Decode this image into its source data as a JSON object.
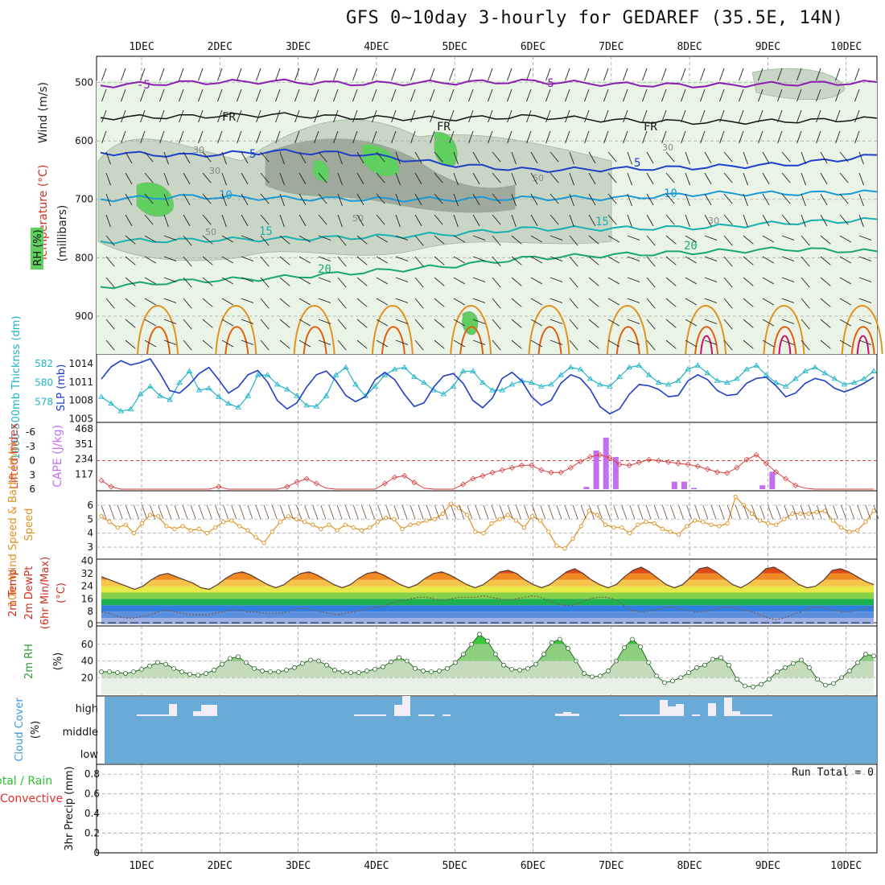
{
  "title": "GFS 0~10day 3-hourly for GEDAREF (35.5E, 14N)",
  "colors": {
    "rh_fill": "#5fcf5f",
    "wind_label": "#222222",
    "temp_label": "#d03020",
    "rh_label": "#30a030",
    "thickness": "#20b4c8",
    "slp": "#1f3fc8",
    "lifted": "#d84040",
    "cape": "#c070f0",
    "wind10": "#e09020",
    "cloud": "#6aaad6",
    "precip_total": "#30c030",
    "precip_conv": "#e03030"
  },
  "chart_data": [
    {
      "panel": "upper-air",
      "type": "area",
      "x_ticks": [
        "1DEC",
        "2DEC",
        "3DEC",
        "4DEC",
        "5DEC",
        "6DEC",
        "7DEC",
        "8DEC",
        "9DEC",
        "10DEC"
      ],
      "ylabel": "(millibars)",
      "y_ticks": [
        500,
        600,
        700,
        800,
        900
      ],
      "side_labels": [
        "Wind (m/s)",
        "Temperature (°C)",
        "RH (%)"
      ],
      "isotherm_labels": [
        "-5",
        "-5",
        "FR",
        "FR",
        "FR",
        "5",
        "5",
        "10",
        "10",
        "15",
        "15",
        "20",
        "20"
      ],
      "rh_labels": [
        "30",
        "30",
        "50",
        "50",
        "30",
        "30",
        "50"
      ],
      "series": [
        {
          "name": "-5",
          "values": [
            505,
            500,
            498,
            502,
            500,
            498,
            503,
            505,
            502,
            500
          ]
        },
        {
          "name": "FR",
          "values": [
            560,
            558,
            555,
            560,
            562,
            558,
            565,
            568,
            566,
            562
          ]
        },
        {
          "name": "5",
          "values": [
            620,
            625,
            618,
            622,
            640,
            650,
            648,
            645,
            640,
            625
          ]
        },
        {
          "name": "10",
          "values": [
            700,
            695,
            698,
            700,
            700,
            698,
            698,
            690,
            690,
            688
          ]
        },
        {
          "name": "15",
          "values": [
            772,
            770,
            768,
            765,
            760,
            750,
            750,
            748,
            740,
            735
          ]
        },
        {
          "name": "20",
          "values": [
            850,
            840,
            835,
            825,
            815,
            800,
            795,
            790,
            785,
            790
          ]
        }
      ]
    },
    {
      "panel": "thickness-slp",
      "type": "line",
      "ylabel_left": "1000-500mb Thicknss (dm)",
      "ylabel_right": "SLP (mb)",
      "y_ticks_left": [
        "582",
        "580",
        "578"
      ],
      "y_ticks_right": [
        "1014",
        "1011",
        "1008",
        "1005"
      ],
      "series": [
        {
          "name": "1000-500mb Thicknss (dm)",
          "values": [
            578.5,
            577.8,
            577.0,
            577.2,
            578.8,
            579.6,
            578.6,
            578.2,
            580.0,
            581.2,
            579.2,
            579.4,
            578.5,
            577.8,
            577.4,
            578.6,
            580.8,
            580.8,
            579.8,
            579.3,
            578.6,
            577.6,
            577.5,
            578.6,
            580.8,
            581.6,
            579.8,
            578.6,
            579.6,
            580.8,
            581.4,
            581.6,
            580.6,
            580.0,
            579.2,
            578.8,
            579.6,
            581.2,
            581.2,
            580.0,
            579.2,
            579.2,
            579.8,
            580.2,
            580.0,
            579.6,
            579.8,
            580.8,
            581.6,
            581.4,
            580.4,
            579.8,
            579.6,
            580.6,
            581.6,
            581.8,
            580.8,
            580.0,
            579.8,
            580.2,
            581.4,
            581.8,
            581.0,
            580.2,
            580.0,
            580.4,
            581.4,
            581.8,
            580.8,
            580.0,
            579.6,
            580.4,
            581.2,
            581.6,
            581.0,
            580.4,
            579.8,
            580.0,
            580.4,
            581.2
          ]
        },
        {
          "name": "SLP (mb)",
          "values": [
            1011.5,
            1013.5,
            1014.5,
            1013.8,
            1014.2,
            1014.8,
            1012.4,
            1009.6,
            1009.2,
            1010.6,
            1012.4,
            1013.4,
            1011.4,
            1009.2,
            1010.2,
            1012.2,
            1012.9,
            1011.0,
            1008.0,
            1006.6,
            1007.6,
            1010.2,
            1012.2,
            1012.8,
            1011.2,
            1008.8,
            1007.8,
            1008.6,
            1011.4,
            1012.6,
            1011.4,
            1009.0,
            1007.0,
            1007.6,
            1010.2,
            1012.0,
            1012.4,
            1010.8,
            1008.0,
            1006.8,
            1008.4,
            1011.6,
            1012.6,
            1011.2,
            1008.6,
            1007.2,
            1008.0,
            1010.8,
            1012.2,
            1011.6,
            1009.8,
            1007.0,
            1005.8,
            1006.6,
            1009.0,
            1010.6,
            1010.4,
            1009.8,
            1008.6,
            1008.8,
            1011.2,
            1012.2,
            1011.4,
            1009.6,
            1008.8,
            1009.0,
            1010.8,
            1011.6,
            1011.8,
            1010.4,
            1008.6,
            1009.2,
            1010.8,
            1011.6,
            1011.2,
            1010.0,
            1009.4,
            1010.0,
            1010.8,
            1011.8
          ]
        }
      ]
    },
    {
      "panel": "cape-lifted",
      "type": "bar",
      "ylabel_left": "Lifted Index",
      "ylabel_right": "CAPE (J/kg)",
      "y_ticks_left": [
        "-6",
        "-3",
        "0",
        "3",
        "6"
      ],
      "y_ticks_right": [
        "468",
        "351",
        "234",
        "117"
      ],
      "cape_values": [
        0,
        0,
        0,
        0,
        0,
        0,
        0,
        0,
        0,
        0,
        0,
        0,
        0,
        0,
        0,
        0,
        0,
        0,
        0,
        0,
        0,
        0,
        0,
        0,
        0,
        0,
        0,
        0,
        0,
        0,
        0,
        0,
        0,
        0,
        0,
        0,
        0,
        0,
        0,
        0,
        0,
        0,
        0,
        0,
        0,
        0,
        0,
        0,
        0,
        18,
        300,
        400,
        250,
        0,
        0,
        0,
        0,
        0,
        0,
        0,
        0,
        0,
        0,
        0,
        0,
        0,
        0,
        0,
        0,
        0,
        0,
        0,
        0,
        0,
        0,
        0,
        0,
        0,
        0,
        0
      ],
      "cape_extra": [
        {
          "index": 58,
          "value": 58
        },
        {
          "index": 59,
          "value": 58
        },
        {
          "index": 60,
          "value": 10
        },
        {
          "index": 67,
          "value": 30
        },
        {
          "index": 68,
          "value": 135
        }
      ],
      "lifted_values": [
        4.2,
        5.5,
        6,
        6,
        6,
        6,
        6,
        6,
        6,
        6,
        6,
        6,
        5.5,
        6,
        6,
        6,
        6,
        6,
        6,
        5.5,
        4.5,
        3.8,
        4.8,
        5.8,
        6,
        6,
        6,
        6,
        6,
        4.8,
        3.5,
        3.2,
        4.6,
        5.8,
        6,
        6,
        6,
        5,
        3.8,
        3.2,
        2.5,
        2.0,
        1.5,
        1.0,
        1.0,
        2.0,
        2.5,
        2.5,
        1.5,
        0.2,
        -0.8,
        -1.2,
        -0.6,
        0.8,
        1.0,
        0.4,
        -0.2,
        0.0,
        0.3,
        0.6,
        0.8,
        1.2,
        1.8,
        2.4,
        2.6,
        1.5,
        -0.2,
        -1.2,
        0.6,
        2.4,
        3.8,
        5.2,
        5.8,
        6,
        6,
        6,
        6,
        6,
        6,
        6
      ]
    },
    {
      "panel": "wind-10m",
      "type": "line",
      "ylabel": "10m Wind Speed & Barbs (m/s)",
      "y_ticks": [
        "6",
        "5",
        "4",
        "3"
      ],
      "values": [
        5.2,
        4.8,
        4.4,
        4.6,
        4.0,
        4.7,
        5.3,
        5.2,
        4.5,
        4.3,
        4.5,
        4.2,
        4.3,
        4.0,
        4.4,
        4.8,
        4.9,
        4.5,
        4.2,
        3.7,
        3.3,
        4.1,
        4.8,
        5.2,
        5.0,
        4.8,
        4.6,
        4.3,
        4.6,
        4.2,
        4.6,
        4.4,
        4.2,
        4.4,
        4.8,
        5.1,
        5.0,
        4.3,
        4.6,
        4.7,
        4.9,
        5.0,
        5.4,
        6.1,
        5.8,
        5.3,
        4.1,
        4.0,
        4.7,
        5.0,
        5.3,
        4.9,
        4.4,
        5.2,
        4.9,
        4.1,
        3.1,
        2.9,
        3.6,
        4.5,
        5.6,
        5.3,
        4.6,
        4.4,
        4.4,
        4.0,
        4.6,
        4.8,
        4.7,
        4.3,
        4.1,
        3.9,
        4.5,
        4.9,
        4.8,
        4.6,
        4.5,
        4.7,
        6.6,
        6.0,
        5.4,
        4.9,
        4.7,
        4.6,
        5.0,
        5.4,
        5.4,
        5.4,
        5.5,
        5.6,
        4.9,
        4.4,
        4.1,
        4.2,
        4.8,
        5.6
      ]
    },
    {
      "panel": "temperature-2m",
      "type": "area",
      "ylabel": "2m Temp 2m DewPt (6hr Min/Max) (°C)",
      "y_ticks": [
        "40",
        "32",
        "24",
        "16",
        "8",
        "0"
      ],
      "temp_values": [
        30,
        28,
        26,
        24,
        22,
        24,
        28,
        31,
        32,
        30,
        28,
        26,
        23,
        22,
        25,
        29,
        32,
        33,
        31,
        28,
        25,
        23,
        25,
        29,
        32,
        33,
        31,
        28,
        25,
        23,
        25,
        29,
        32,
        33,
        31,
        28,
        25,
        23,
        25,
        29,
        32,
        33,
        31,
        28,
        25,
        23,
        25,
        29,
        33,
        34,
        32,
        28,
        25,
        23,
        25,
        29,
        33,
        35,
        32,
        28,
        25,
        23,
        25,
        30,
        34,
        36,
        33,
        29,
        25,
        23,
        25,
        30,
        35,
        36,
        33,
        29,
        25,
        23,
        26,
        30,
        35,
        36,
        33,
        29,
        25,
        23,
        24,
        28,
        34,
        35,
        33,
        30,
        27,
        25
      ],
      "dewpt_values": [
        8,
        7,
        5,
        4,
        4,
        5,
        6,
        8,
        9,
        8,
        7,
        6,
        6,
        6,
        7,
        8,
        9,
        9,
        8,
        8,
        7,
        7,
        7,
        8,
        10,
        10,
        9,
        8,
        7,
        6,
        7,
        8,
        9,
        10,
        11,
        12,
        14,
        15,
        16,
        17,
        17,
        16,
        15,
        16,
        17,
        17,
        17,
        18,
        17,
        16,
        15,
        16,
        17,
        18,
        17,
        15,
        13,
        12,
        12,
        14,
        16,
        17,
        17,
        16,
        13,
        9,
        8,
        8,
        9,
        10,
        11,
        10,
        9,
        8,
        8,
        9,
        10,
        11,
        10,
        9,
        8,
        6,
        4,
        3,
        4,
        6,
        8,
        10,
        11,
        10,
        9,
        8,
        8,
        9,
        10,
        11
      ]
    },
    {
      "panel": "rh-2m",
      "type": "area",
      "ylabel": "2m RH (%)",
      "y_ticks": [
        "60",
        "40",
        "20"
      ],
      "values": [
        27,
        27,
        26,
        25,
        27,
        30,
        34,
        38,
        36,
        31,
        27,
        24,
        23,
        25,
        29,
        36,
        43,
        45,
        38,
        31,
        28,
        27,
        27,
        29,
        32,
        37,
        41,
        40,
        35,
        29,
        27,
        26,
        26,
        28,
        30,
        33,
        39,
        44,
        40,
        31,
        28,
        27,
        28,
        31,
        38,
        48,
        60,
        72,
        64,
        48,
        35,
        30,
        29,
        31,
        36,
        48,
        62,
        66,
        55,
        40,
        25,
        21,
        22,
        28,
        40,
        56,
        66,
        57,
        38,
        22,
        14,
        16,
        20,
        26,
        32,
        35,
        42,
        44,
        35,
        18,
        10,
        9,
        12,
        18,
        27,
        32,
        37,
        41,
        32,
        18,
        11,
        13,
        20,
        28,
        38,
        48,
        46
      ]
    },
    {
      "panel": "cloud-cover",
      "type": "bar",
      "ylabel": "Cloud Cover (%)",
      "y_ticks": [
        "high",
        "middle",
        "low"
      ],
      "high_values": [
        0,
        0,
        0,
        0,
        2,
        2,
        2,
        2,
        15,
        0,
        0,
        6,
        14,
        14,
        0,
        0,
        0,
        0,
        0,
        0,
        0,
        0,
        0,
        0,
        0,
        0,
        0,
        0,
        0,
        0,
        0,
        2,
        2,
        2,
        2,
        0,
        14,
        25,
        0,
        2,
        2,
        0,
        2,
        0,
        0,
        0,
        0,
        0,
        0,
        0,
        0,
        0,
        0,
        0,
        0,
        0,
        3,
        5,
        3,
        0,
        0,
        0,
        0,
        0,
        2,
        2,
        2,
        2,
        2,
        20,
        12,
        15,
        0,
        2,
        0,
        16,
        0,
        23,
        6,
        2,
        2,
        2,
        2,
        0,
        0,
        0,
        0,
        0,
        0,
        0,
        0,
        0,
        0,
        0,
        0,
        0
      ]
    },
    {
      "panel": "precip-3hr",
      "type": "bar",
      "ylabel": "3hr Precip (mm)",
      "side_labels": [
        "Total / Rain",
        "Convective"
      ],
      "y_ticks": [
        "0.8",
        "0.6",
        "0.4",
        "0.2",
        "0"
      ],
      "run_total_label": "Run Total = 0",
      "values": [
        0,
        0,
        0,
        0,
        0,
        0,
        0,
        0,
        0,
        0,
        0,
        0,
        0,
        0,
        0,
        0,
        0,
        0,
        0,
        0,
        0,
        0,
        0,
        0,
        0,
        0,
        0,
        0,
        0,
        0,
        0,
        0,
        0,
        0,
        0,
        0,
        0,
        0,
        0,
        0,
        0,
        0,
        0,
        0,
        0,
        0,
        0,
        0,
        0,
        0,
        0,
        0,
        0,
        0,
        0,
        0,
        0,
        0,
        0,
        0,
        0,
        0,
        0,
        0,
        0,
        0,
        0,
        0,
        0,
        0,
        0,
        0,
        0,
        0,
        0,
        0,
        0,
        0,
        0,
        0
      ]
    }
  ]
}
